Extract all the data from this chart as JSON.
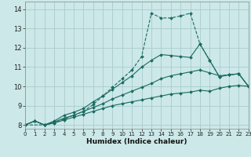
{
  "xlabel": "Humidex (Indice chaleur)",
  "background_color": "#cce8e8",
  "grid_color": "#aacccc",
  "line_color": "#1a6b60",
  "xlim": [
    0,
    23
  ],
  "ylim": [
    7.8,
    14.4
  ],
  "xticks": [
    0,
    1,
    2,
    3,
    4,
    5,
    6,
    7,
    8,
    9,
    10,
    11,
    12,
    13,
    14,
    15,
    16,
    17,
    18,
    19,
    20,
    21,
    22,
    23
  ],
  "yticks": [
    8,
    9,
    10,
    11,
    12,
    13,
    14
  ],
  "lines": [
    {
      "x": [
        0,
        1,
        2,
        3,
        4,
        5,
        6,
        7,
        8,
        9,
        10,
        11,
        12,
        13,
        14,
        15,
        16,
        17,
        18,
        19,
        20,
        21,
        22,
        23
      ],
      "y": [
        8.0,
        8.2,
        8.0,
        8.1,
        8.25,
        8.4,
        8.55,
        8.7,
        8.85,
        9.0,
        9.1,
        9.2,
        9.3,
        9.4,
        9.5,
        9.6,
        9.65,
        9.7,
        9.8,
        9.75,
        9.9,
        10.0,
        10.05,
        10.0
      ],
      "ls": "-"
    },
    {
      "x": [
        0,
        1,
        2,
        3,
        4,
        5,
        6,
        7,
        8,
        9,
        10,
        11,
        12,
        13,
        14,
        15,
        16,
        17,
        18,
        19,
        20,
        21,
        22,
        23
      ],
      "y": [
        8.0,
        8.2,
        8.0,
        8.15,
        8.35,
        8.5,
        8.7,
        8.9,
        9.1,
        9.35,
        9.55,
        9.75,
        9.95,
        10.15,
        10.4,
        10.55,
        10.65,
        10.75,
        10.85,
        10.7,
        10.55,
        10.6,
        10.65,
        10.0
      ],
      "ls": "-"
    },
    {
      "x": [
        0,
        1,
        2,
        3,
        4,
        5,
        6,
        7,
        8,
        9,
        10,
        11,
        12,
        13,
        14,
        15,
        16,
        17,
        18,
        19,
        20,
        21,
        22,
        23
      ],
      "y": [
        8.0,
        8.2,
        8.0,
        8.2,
        8.5,
        8.65,
        8.85,
        9.2,
        9.5,
        9.85,
        10.2,
        10.55,
        11.0,
        11.35,
        11.65,
        11.6,
        11.55,
        11.5,
        12.2,
        11.35,
        10.5,
        10.6,
        10.65,
        10.0
      ],
      "ls": "-"
    },
    {
      "x": [
        0,
        2,
        3,
        4,
        5,
        6,
        7,
        8,
        9,
        10,
        11,
        12,
        13,
        14,
        15,
        16,
        17,
        18,
        19,
        20,
        21,
        22,
        23
      ],
      "y": [
        8.0,
        8.0,
        8.1,
        8.3,
        8.5,
        8.7,
        9.05,
        9.5,
        9.95,
        10.4,
        10.85,
        11.55,
        13.8,
        13.55,
        13.55,
        13.65,
        13.8,
        12.2,
        11.35,
        10.5,
        10.6,
        10.65,
        10.0
      ],
      "ls": "--"
    }
  ]
}
